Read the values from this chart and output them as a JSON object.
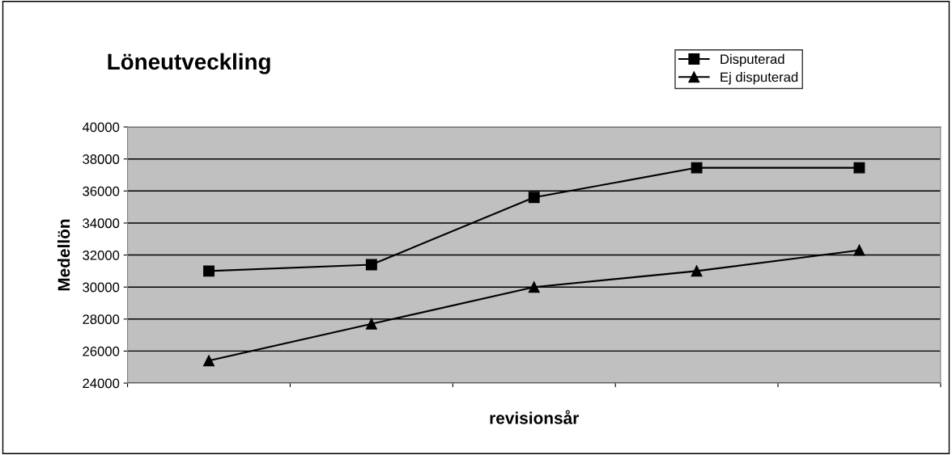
{
  "chart_data": {
    "type": "line",
    "title": "Löneutveckling",
    "xlabel": "revisionsår",
    "ylabel": "Medellön",
    "categories": [
      null,
      null,
      null,
      null,
      null
    ],
    "series": [
      {
        "name": "Disputerad",
        "color": "#000000",
        "marker": "square",
        "values": [
          31000,
          31400,
          35600,
          37450,
          37450
        ]
      },
      {
        "name": "Ej disputerad",
        "color": "#000000",
        "marker": "triangle",
        "values": [
          25400,
          27700,
          30000,
          31000,
          32300
        ]
      }
    ],
    "ylim": [
      24000,
      40000
    ],
    "yticks": [
      24000,
      26000,
      28000,
      30000,
      32000,
      34000,
      36000,
      38000,
      40000
    ],
    "grid": "y",
    "legend": "top right",
    "tick_labels": "y",
    "line_style": "solid"
  }
}
